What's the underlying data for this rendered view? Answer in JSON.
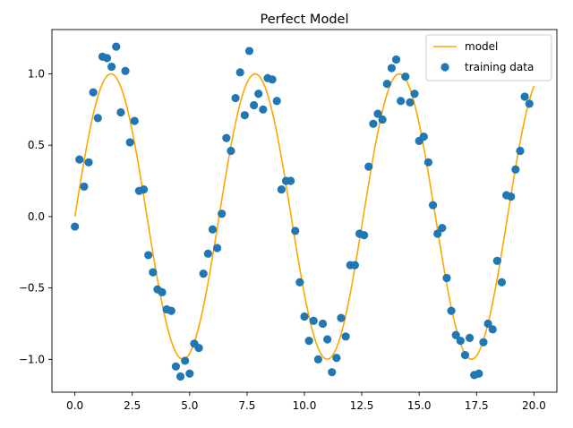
{
  "chart_data": {
    "type": "scatter+line",
    "title": "Perfect Model",
    "xlabel": "",
    "ylabel": "",
    "xlim": [
      -1.0,
      21.0
    ],
    "ylim": [
      -1.23,
      1.31
    ],
    "x_ticks": [
      0.0,
      2.5,
      5.0,
      7.5,
      10.0,
      12.5,
      15.0,
      17.5,
      20.0
    ],
    "x_tick_labels": [
      "0.0",
      "2.5",
      "5.0",
      "7.5",
      "10.0",
      "12.5",
      "15.0",
      "17.5",
      "20.0"
    ],
    "y_ticks": [
      -1.0,
      -0.5,
      0.0,
      0.5,
      1.0
    ],
    "y_tick_labels": [
      "−1.0",
      "−0.5",
      "0.0",
      "0.5",
      "1.0"
    ],
    "grid": false,
    "legend_position": "upper right",
    "series": [
      {
        "name": "model",
        "kind": "line",
        "color": "#ffa500",
        "function": "sin(x)",
        "x_range": [
          0,
          20
        ],
        "samples": 201
      },
      {
        "name": "training data",
        "kind": "scatter",
        "color": "#1f77b4",
        "points": [
          [
            0.0,
            -0.07
          ],
          [
            0.2,
            0.4
          ],
          [
            0.4,
            0.21
          ],
          [
            0.6,
            0.38
          ],
          [
            0.8,
            0.87
          ],
          [
            1.0,
            0.69
          ],
          [
            1.2,
            1.12
          ],
          [
            1.4,
            1.11
          ],
          [
            1.6,
            1.05
          ],
          [
            1.8,
            1.19
          ],
          [
            2.0,
            0.73
          ],
          [
            2.2,
            1.02
          ],
          [
            2.4,
            0.52
          ],
          [
            2.6,
            0.67
          ],
          [
            2.8,
            0.18
          ],
          [
            3.0,
            0.19
          ],
          [
            3.2,
            -0.27
          ],
          [
            3.4,
            -0.39
          ],
          [
            3.6,
            -0.51
          ],
          [
            3.8,
            -0.53
          ],
          [
            4.0,
            -0.65
          ],
          [
            4.2,
            -0.66
          ],
          [
            4.4,
            -1.05
          ],
          [
            4.6,
            -1.12
          ],
          [
            4.8,
            -1.01
          ],
          [
            5.0,
            -1.1
          ],
          [
            5.2,
            -0.89
          ],
          [
            5.4,
            -0.92
          ],
          [
            5.6,
            -0.4
          ],
          [
            5.8,
            -0.26
          ],
          [
            6.0,
            -0.09
          ],
          [
            6.2,
            -0.22
          ],
          [
            6.4,
            0.02
          ],
          [
            6.6,
            0.55
          ],
          [
            6.8,
            0.46
          ],
          [
            7.0,
            0.83
          ],
          [
            7.2,
            1.01
          ],
          [
            7.4,
            0.71
          ],
          [
            7.6,
            1.16
          ],
          [
            7.8,
            0.78
          ],
          [
            8.0,
            0.86
          ],
          [
            8.2,
            0.75
          ],
          [
            8.4,
            0.97
          ],
          [
            8.6,
            0.96
          ],
          [
            8.8,
            0.81
          ],
          [
            9.0,
            0.19
          ],
          [
            9.2,
            0.25
          ],
          [
            9.4,
            0.25
          ],
          [
            9.6,
            -0.1
          ],
          [
            9.8,
            -0.46
          ],
          [
            10.0,
            -0.7
          ],
          [
            10.2,
            -0.87
          ],
          [
            10.4,
            -0.73
          ],
          [
            10.6,
            -1.0
          ],
          [
            10.8,
            -0.75
          ],
          [
            11.0,
            -0.86
          ],
          [
            11.2,
            -1.09
          ],
          [
            11.4,
            -0.99
          ],
          [
            11.6,
            -0.71
          ],
          [
            11.8,
            -0.84
          ],
          [
            12.0,
            -0.34
          ],
          [
            12.2,
            -0.34
          ],
          [
            12.4,
            -0.12
          ],
          [
            12.6,
            -0.13
          ],
          [
            12.8,
            0.35
          ],
          [
            13.0,
            0.65
          ],
          [
            13.2,
            0.72
          ],
          [
            13.4,
            0.68
          ],
          [
            13.6,
            0.93
          ],
          [
            13.8,
            1.04
          ],
          [
            14.0,
            1.1
          ],
          [
            14.2,
            0.81
          ],
          [
            14.4,
            0.98
          ],
          [
            14.6,
            0.8
          ],
          [
            14.8,
            0.86
          ],
          [
            15.0,
            0.53
          ],
          [
            15.2,
            0.56
          ],
          [
            15.4,
            0.38
          ],
          [
            15.6,
            0.08
          ],
          [
            15.8,
            -0.12
          ],
          [
            16.0,
            -0.08
          ],
          [
            16.2,
            -0.43
          ],
          [
            16.4,
            -0.66
          ],
          [
            16.6,
            -0.83
          ],
          [
            16.8,
            -0.87
          ],
          [
            17.0,
            -0.97
          ],
          [
            17.2,
            -0.85
          ],
          [
            17.4,
            -1.11
          ],
          [
            17.6,
            -1.1
          ],
          [
            17.8,
            -0.88
          ],
          [
            18.0,
            -0.75
          ],
          [
            18.2,
            -0.79
          ],
          [
            18.4,
            -0.31
          ],
          [
            18.6,
            -0.46
          ],
          [
            18.8,
            0.15
          ],
          [
            19.0,
            0.14
          ],
          [
            19.2,
            0.33
          ],
          [
            19.4,
            0.46
          ],
          [
            19.6,
            0.84
          ],
          [
            19.8,
            0.79
          ]
        ]
      }
    ]
  }
}
